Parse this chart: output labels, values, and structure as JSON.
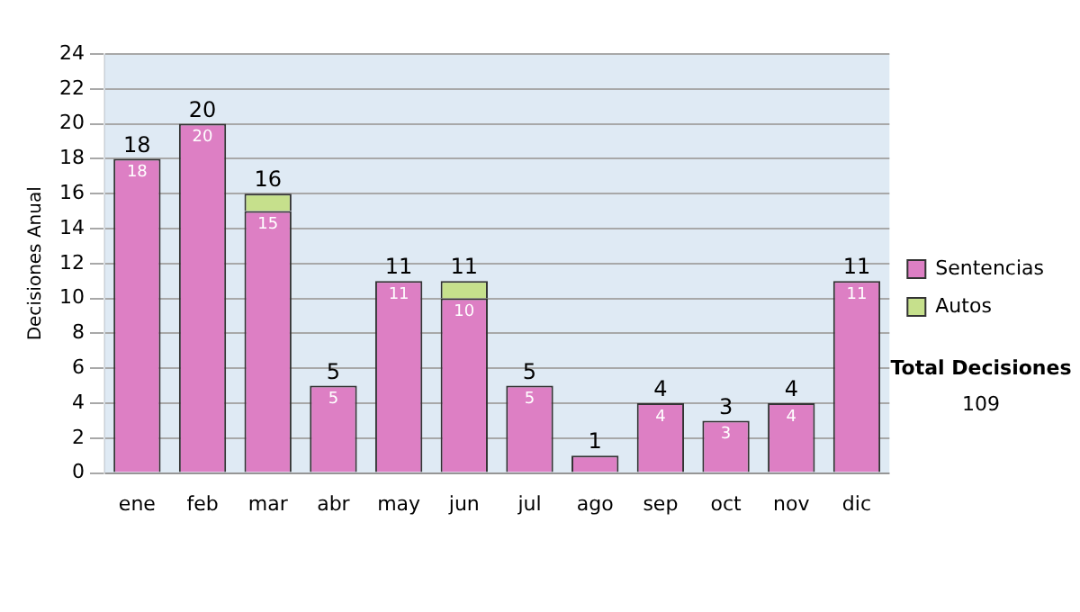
{
  "chart_data": {
    "type": "bar",
    "stacked": true,
    "ylabel": "Decisiones Anual",
    "categories": [
      "ene",
      "feb",
      "mar",
      "abr",
      "may",
      "jun",
      "jul",
      "ago",
      "sep",
      "oct",
      "nov",
      "dic"
    ],
    "series": [
      {
        "name": "Sentencias",
        "color": "#dd7fc4",
        "values": [
          18,
          20,
          15,
          5,
          11,
          10,
          5,
          1,
          4,
          3,
          4,
          11
        ],
        "value_labels": [
          "18",
          "20",
          "15",
          "5",
          "11",
          "10",
          "5",
          null,
          "4",
          "3",
          "4",
          "11"
        ]
      },
      {
        "name": "Autos",
        "color": "#c6e08c",
        "values": [
          0,
          0,
          1,
          0,
          0,
          1,
          0,
          0,
          0,
          0,
          0,
          0
        ]
      }
    ],
    "totals": [
      "18",
      "20",
      "16",
      "5",
      "11",
      "11",
      "5",
      "1",
      "4",
      "3",
      "4",
      "11"
    ],
    "ylim": [
      0,
      24
    ],
    "yticks": [
      0,
      2,
      4,
      6,
      8,
      10,
      12,
      14,
      16,
      18,
      20,
      22,
      24
    ],
    "grid": "y",
    "legend": "right",
    "annotations": [
      "Total Decisiones",
      "109"
    ]
  }
}
